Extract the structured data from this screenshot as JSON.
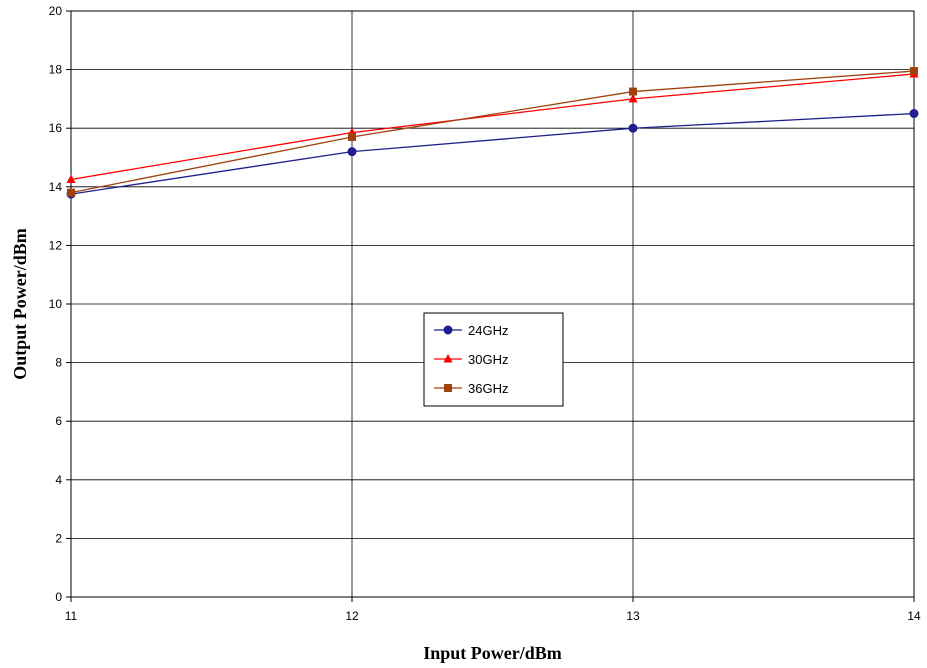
{
  "chart_data": {
    "type": "line",
    "title": "",
    "xlabel": "Input Power/dBm",
    "ylabel": "Output Power/dBm",
    "x": [
      11,
      12,
      13,
      14
    ],
    "xlim": [
      11,
      14
    ],
    "ylim": [
      0,
      20
    ],
    "xticks": [
      "11",
      "12",
      "13",
      "14"
    ],
    "yticks": [
      "0",
      "2",
      "4",
      "6",
      "8",
      "10",
      "12",
      "14",
      "16",
      "18",
      "20"
    ],
    "grid": true,
    "legend_position": "center",
    "series": [
      {
        "name": "24GHz",
        "values": [
          13.75,
          15.2,
          16.0,
          16.5
        ],
        "color": "#1f1f8f",
        "marker": "circle"
      },
      {
        "name": "30GHz",
        "values": [
          14.25,
          15.85,
          17.0,
          17.85
        ],
        "color": "#ff0000",
        "marker": "triangle"
      },
      {
        "name": "36GHz",
        "values": [
          13.8,
          15.7,
          17.25,
          17.95
        ],
        "color": "#a0420e",
        "marker": "square"
      }
    ]
  }
}
